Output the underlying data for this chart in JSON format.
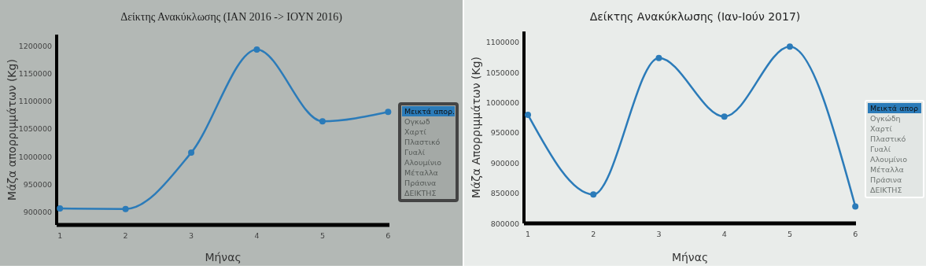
{
  "chart_data": [
    {
      "type": "line",
      "title": "Δείκτης Ανακύκλωσης (ΙΑΝ 2016 -> ΙΟΥΝ 2016)",
      "xlabel": "Μήνας",
      "ylabel": "Μάζα απορριμμάτων (Kg)",
      "x": [
        1,
        2,
        3,
        4,
        5,
        6
      ],
      "series": [
        {
          "name": "Μεικτά απορ.",
          "color": "#2b7bb9",
          "values": [
            906000,
            905000,
            1007000,
            1194000,
            1064000,
            1081000
          ]
        }
      ],
      "xlim": [
        0.95,
        6.02
      ],
      "xticks": [
        1,
        2,
        3,
        4,
        5,
        6
      ],
      "ylim": [
        876000,
        1221000
      ],
      "yticks": [
        900000,
        950000,
        1000000,
        1050000,
        1100000,
        1150000,
        1200000
      ],
      "marker": "circle",
      "legend": "right",
      "grid": false,
      "annotations": [
        "Ογκωδ",
        "Χαρτί",
        "Πλαστικό",
        "Γυαλί",
        "Αλουμίνιο",
        "Μέταλλα",
        "Πράσινα",
        "ΔΕΙΚΤΗΣ"
      ]
    },
    {
      "type": "line",
      "title": "Δείκτης Ανακύκλωσης (Ιαν-Ιούν 2017)",
      "xlabel": "Μήνας",
      "ylabel": "Μάζα Απορριμμάτων (Kg)",
      "x": [
        1,
        2,
        3,
        4,
        5,
        6
      ],
      "series": [
        {
          "name": "Μεικτά απορ",
          "color": "#2b7bb9",
          "values": [
            980000,
            848000,
            1074000,
            977000,
            1093000,
            828000
          ]
        }
      ],
      "xlim": [
        0.94,
        6.01
      ],
      "xticks": [
        1,
        2,
        3,
        4,
        5,
        6
      ],
      "ylim": [
        800000,
        1118000
      ],
      "yticks": [
        800000,
        850000,
        900000,
        950000,
        1000000,
        1050000,
        1100000
      ],
      "marker": "circle",
      "legend": "right",
      "grid": false,
      "annotations": [
        "Ογκώδη",
        "Χαρτί",
        "Πλαστικό",
        "Γυαλί",
        "Αλουμίνιο",
        "Μέταλλα",
        "Πράσινα",
        "ΔΕΙΚΤΗΣ"
      ]
    }
  ]
}
